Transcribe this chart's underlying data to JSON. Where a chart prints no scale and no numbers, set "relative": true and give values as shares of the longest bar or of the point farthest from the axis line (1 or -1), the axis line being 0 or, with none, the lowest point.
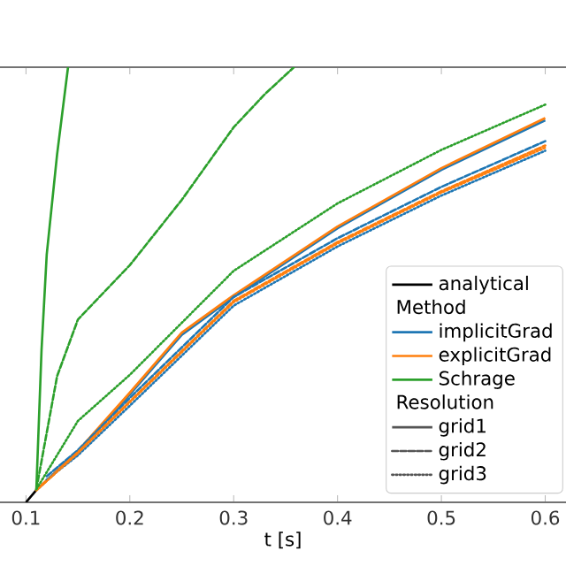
{
  "chart_data": {
    "type": "line",
    "relative": true,
    "xlabel": "t [s]",
    "xlim": [
      0.075,
      0.62
    ],
    "xticks": [
      0.1,
      0.2,
      0.3,
      0.4,
      0.5,
      0.6
    ],
    "legend": "bottom right",
    "grid": false,
    "annotations": [
      "Method",
      "Resolution"
    ],
    "series": [
      {
        "name": "analytical",
        "color": "#000000",
        "line_style": "solid",
        "x": [
          0.1,
          0.11
        ],
        "values": [
          0,
          0.028
        ]
      },
      {
        "name": "implicitGrad",
        "color": "#1f77b4",
        "line_style": "solid",
        "x": [
          0.11,
          0.15,
          0.2,
          0.25,
          0.3,
          0.4,
          0.5,
          0.6
        ],
        "values": [
          0.028,
          0.116,
          0.248,
          0.385,
          0.472,
          0.63,
          0.764,
          0.878
        ]
      },
      {
        "name": "explicitGrad",
        "color": "#ff7f0e",
        "line_style": "solid",
        "x": [
          0.11,
          0.15,
          0.2,
          0.25,
          0.3,
          0.4,
          0.5,
          0.6
        ],
        "values": [
          0.028,
          0.118,
          0.252,
          0.39,
          0.476,
          0.634,
          0.768,
          0.883
        ]
      },
      {
        "name": "Schrage",
        "color": "#2ca02c",
        "line_style": "solid",
        "x": [
          0.11,
          0.115,
          0.12,
          0.13,
          0.1405
        ],
        "values": [
          0.03,
          0.35,
          0.57,
          0.8,
          1.0
        ]
      },
      {
        "color": "#1f77b4",
        "line_style": "dashed",
        "x": [
          0.12,
          0.15,
          0.2,
          0.3,
          0.4,
          0.5,
          0.6
        ],
        "values": [
          0.06,
          0.12,
          0.24,
          0.472,
          0.607,
          0.725,
          0.83
        ]
      },
      {
        "color": "#ff7f0e",
        "line_style": "dashed",
        "x": [
          0.11,
          0.15,
          0.2,
          0.3,
          0.4,
          0.5,
          0.6
        ],
        "values": [
          0.028,
          0.115,
          0.232,
          0.463,
          0.598,
          0.715,
          0.82
        ]
      },
      {
        "color": "#2ca02c",
        "line_style": "dashed",
        "x": [
          0.11,
          0.13,
          0.15,
          0.2,
          0.25,
          0.3,
          0.33,
          0.358
        ],
        "values": [
          0.03,
          0.29,
          0.42,
          0.545,
          0.695,
          0.862,
          0.938,
          1.0
        ]
      },
      {
        "color": "#1f77b4",
        "line_style": "dotted",
        "x": [
          0.12,
          0.15,
          0.2,
          0.3,
          0.4,
          0.5,
          0.6
        ],
        "values": [
          0.052,
          0.108,
          0.222,
          0.452,
          0.588,
          0.705,
          0.808
        ]
      },
      {
        "color": "#ff7f0e",
        "line_style": "dotted",
        "x": [
          0.11,
          0.15,
          0.2,
          0.3,
          0.4,
          0.5,
          0.6
        ],
        "values": [
          0.028,
          0.113,
          0.23,
          0.46,
          0.595,
          0.712,
          0.815
        ]
      },
      {
        "color": "#2ca02c",
        "line_style": "dotted",
        "x": [
          0.11,
          0.15,
          0.2,
          0.3,
          0.4,
          0.5,
          0.6
        ],
        "values": [
          0.03,
          0.187,
          0.293,
          0.532,
          0.687,
          0.81,
          0.914
        ]
      },
      {
        "name": "grid1",
        "color": "#555555",
        "line_style": "solid"
      },
      {
        "name": "grid2",
        "color": "#555555",
        "line_style": "dashed"
      },
      {
        "name": "grid3",
        "color": "#555555",
        "line_style": "dotted"
      }
    ]
  }
}
